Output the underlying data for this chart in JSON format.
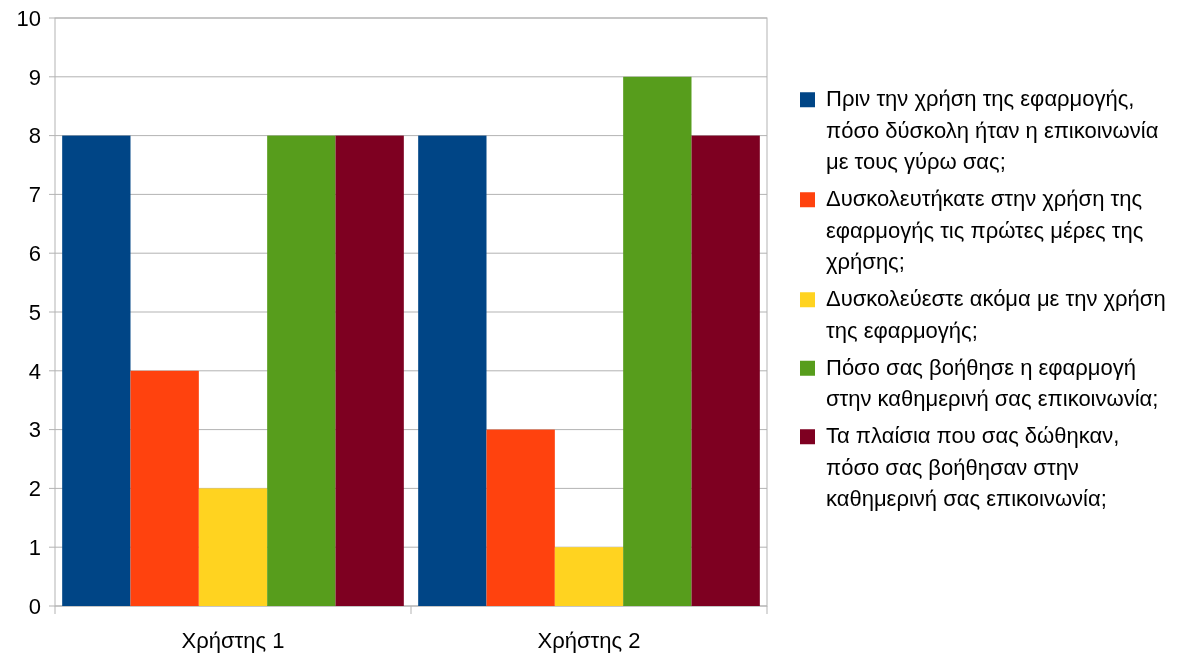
{
  "chart_data": {
    "type": "bar",
    "categories": [
      "Χρήστης 1",
      "Χρήστης 2"
    ],
    "series": [
      {
        "name": "Πριν την χρήση της εφαρμογής, πόσο δύσκολη ήταν η επικοινωνία με τους γύρω σας;",
        "color": "#004586",
        "values": [
          8,
          8
        ]
      },
      {
        "name": "Δυσκολευτήκατε στην χρήση της εφαρμογής τις πρώτες μέρες της χρήσης;",
        "color": "#ff420e",
        "values": [
          4,
          3
        ]
      },
      {
        "name": "Δυσκολεύεστε ακόμα με την χρήση της εφαρμογής;",
        "color": "#ffd320",
        "values": [
          2,
          1
        ]
      },
      {
        "name": "Πόσο σας βοήθησε η εφαρμογή στην καθημερινή σας επικοινωνία;",
        "color": "#579d1c",
        "values": [
          8,
          9
        ]
      },
      {
        "name": "Τα πλαίσια που σας δώθηκαν, πόσο σας βοήθησαν στην καθημερινή σας επικοινωνία;",
        "color": "#7e0021",
        "values": [
          8,
          8
        ]
      }
    ],
    "ylim": [
      0,
      10
    ],
    "yticks": [
      0,
      1,
      2,
      3,
      4,
      5,
      6,
      7,
      8,
      9,
      10
    ],
    "grid": "y",
    "legend": "right"
  }
}
